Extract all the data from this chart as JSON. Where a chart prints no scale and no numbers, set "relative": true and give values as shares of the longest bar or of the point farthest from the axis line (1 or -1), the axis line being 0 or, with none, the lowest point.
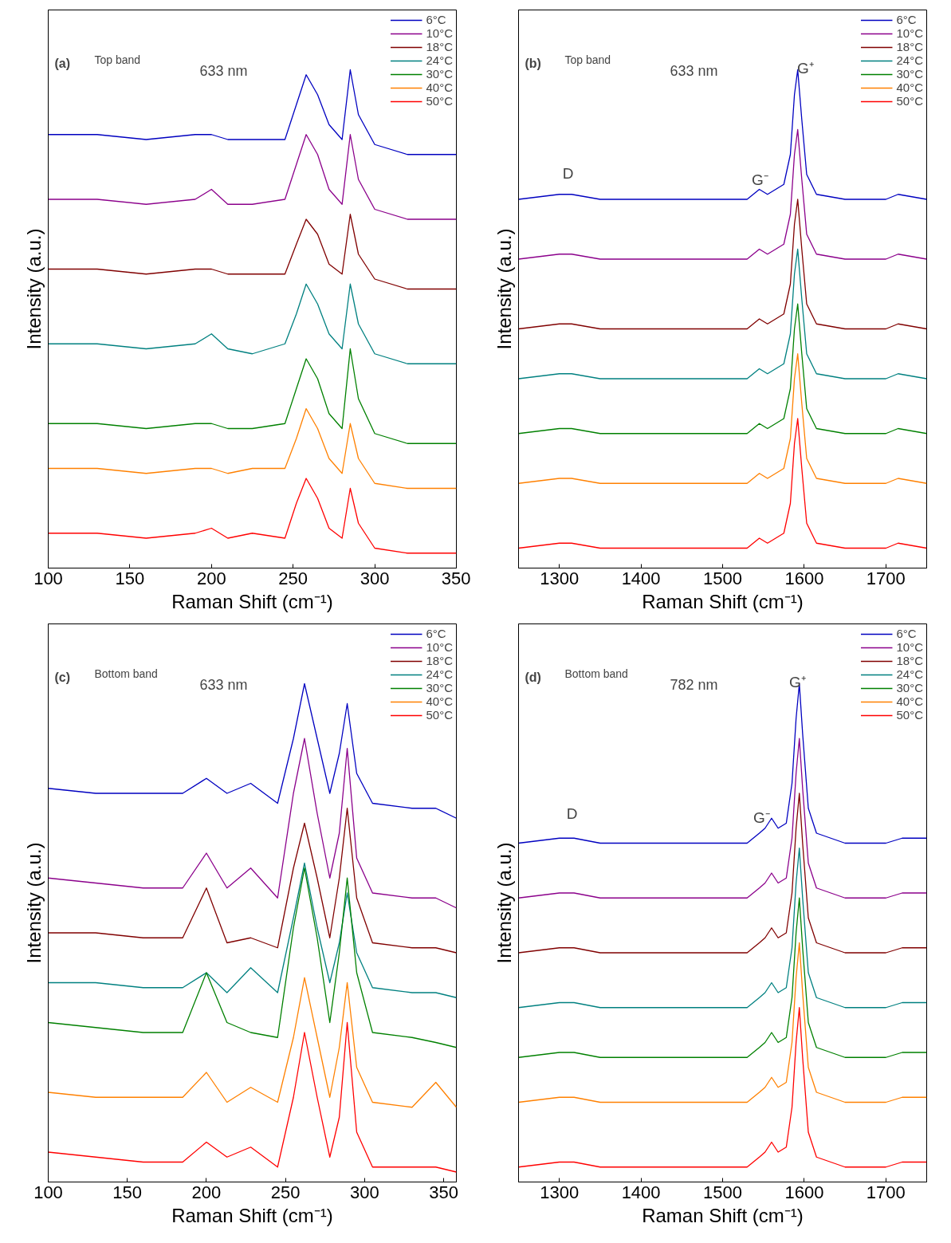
{
  "chart_data": [
    {
      "type": "line",
      "relative": true,
      "xlabel": "Raman Shift (cm⁻¹)",
      "ylabel": "Intensity (a.u.)",
      "legend": "top right",
      "annotations": [
        "(a)",
        "Top band",
        "633 nm"
      ],
      "xlim": [
        100,
        350
      ],
      "xticks": [
        100,
        150,
        200,
        250,
        300,
        350
      ],
      "x": [
        100,
        130,
        160,
        190,
        200,
        210,
        225,
        245,
        252,
        258,
        265,
        272,
        280,
        285,
        290,
        300,
        320,
        350
      ],
      "series": [
        {
          "name": "6°C",
          "color": "#0000c0",
          "values": [
            0.87,
            0.87,
            0.86,
            0.87,
            0.87,
            0.86,
            0.86,
            0.86,
            0.93,
            0.99,
            0.95,
            0.89,
            0.86,
            1.0,
            0.91,
            0.85,
            0.83,
            0.83
          ]
        },
        {
          "name": "10°C",
          "color": "#8b008b",
          "values": [
            0.74,
            0.74,
            0.73,
            0.74,
            0.76,
            0.73,
            0.73,
            0.74,
            0.81,
            0.87,
            0.83,
            0.76,
            0.73,
            0.87,
            0.78,
            0.72,
            0.7,
            0.7
          ]
        },
        {
          "name": "18°C",
          "color": "#800000",
          "values": [
            0.6,
            0.6,
            0.59,
            0.6,
            0.6,
            0.59,
            0.59,
            0.59,
            0.65,
            0.7,
            0.67,
            0.61,
            0.59,
            0.71,
            0.63,
            0.58,
            0.56,
            0.56
          ]
        },
        {
          "name": "24°C",
          "color": "#008080",
          "values": [
            0.45,
            0.45,
            0.44,
            0.45,
            0.47,
            0.44,
            0.43,
            0.45,
            0.51,
            0.57,
            0.53,
            0.47,
            0.44,
            0.57,
            0.49,
            0.43,
            0.41,
            0.41
          ]
        },
        {
          "name": "30°C",
          "color": "#008000",
          "values": [
            0.29,
            0.29,
            0.28,
            0.29,
            0.29,
            0.28,
            0.28,
            0.29,
            0.36,
            0.42,
            0.38,
            0.31,
            0.28,
            0.44,
            0.34,
            0.27,
            0.25,
            0.25
          ]
        },
        {
          "name": "40°C",
          "color": "#ff8000",
          "values": [
            0.2,
            0.2,
            0.19,
            0.2,
            0.2,
            0.19,
            0.2,
            0.2,
            0.26,
            0.32,
            0.28,
            0.22,
            0.19,
            0.29,
            0.22,
            0.17,
            0.16,
            0.16
          ]
        },
        {
          "name": "50°C",
          "color": "#ff0000",
          "values": [
            0.07,
            0.07,
            0.06,
            0.07,
            0.08,
            0.06,
            0.07,
            0.06,
            0.13,
            0.18,
            0.14,
            0.08,
            0.06,
            0.16,
            0.09,
            0.04,
            0.03,
            0.03
          ]
        }
      ]
    },
    {
      "type": "line",
      "relative": true,
      "xlabel": "Raman Shift (cm⁻¹)",
      "ylabel": "Intensity (a.u.)",
      "legend": "top right",
      "annotations": [
        "(b)",
        "Top band",
        "633 nm",
        "D",
        "G⁻",
        "G⁺"
      ],
      "xlim": [
        1250,
        1750
      ],
      "xticks": [
        1300,
        1400,
        1500,
        1600,
        1700
      ],
      "x": [
        1250,
        1300,
        1315,
        1350,
        1450,
        1530,
        1545,
        1555,
        1565,
        1575,
        1583,
        1588,
        1592,
        1597,
        1603,
        1615,
        1650,
        1700,
        1715,
        1750
      ],
      "series": [
        {
          "name": "6°C",
          "color": "#0000c0",
          "values": [
            0.74,
            0.75,
            0.75,
            0.74,
            0.74,
            0.74,
            0.76,
            0.75,
            0.76,
            0.77,
            0.83,
            0.95,
            1.0,
            0.9,
            0.79,
            0.75,
            0.74,
            0.74,
            0.75,
            0.74
          ]
        },
        {
          "name": "10°C",
          "color": "#8b008b",
          "values": [
            0.62,
            0.63,
            0.63,
            0.62,
            0.62,
            0.62,
            0.64,
            0.63,
            0.64,
            0.65,
            0.71,
            0.83,
            0.88,
            0.78,
            0.67,
            0.63,
            0.62,
            0.62,
            0.63,
            0.62
          ]
        },
        {
          "name": "18°C",
          "color": "#800000",
          "values": [
            0.48,
            0.49,
            0.49,
            0.48,
            0.48,
            0.48,
            0.5,
            0.49,
            0.5,
            0.51,
            0.57,
            0.69,
            0.74,
            0.64,
            0.53,
            0.49,
            0.48,
            0.48,
            0.49,
            0.48
          ]
        },
        {
          "name": "24°C",
          "color": "#008080",
          "values": [
            0.38,
            0.39,
            0.39,
            0.38,
            0.38,
            0.38,
            0.4,
            0.39,
            0.4,
            0.41,
            0.47,
            0.59,
            0.64,
            0.54,
            0.43,
            0.39,
            0.38,
            0.38,
            0.39,
            0.38
          ]
        },
        {
          "name": "30°C",
          "color": "#008000",
          "values": [
            0.27,
            0.28,
            0.28,
            0.27,
            0.27,
            0.27,
            0.29,
            0.28,
            0.29,
            0.3,
            0.36,
            0.48,
            0.53,
            0.43,
            0.32,
            0.28,
            0.27,
            0.27,
            0.28,
            0.27
          ]
        },
        {
          "name": "40°C",
          "color": "#ff8000",
          "values": [
            0.17,
            0.18,
            0.18,
            0.17,
            0.17,
            0.17,
            0.19,
            0.18,
            0.19,
            0.2,
            0.26,
            0.38,
            0.43,
            0.33,
            0.22,
            0.18,
            0.17,
            0.17,
            0.18,
            0.17
          ]
        },
        {
          "name": "50°C",
          "color": "#ff0000",
          "values": [
            0.04,
            0.05,
            0.05,
            0.04,
            0.04,
            0.04,
            0.06,
            0.05,
            0.06,
            0.07,
            0.13,
            0.25,
            0.3,
            0.2,
            0.09,
            0.05,
            0.04,
            0.04,
            0.05,
            0.04
          ]
        }
      ]
    },
    {
      "type": "line",
      "relative": true,
      "xlabel": "Raman Shift (cm⁻¹)",
      "ylabel": "Intensity (a.u.)",
      "legend": "top right",
      "annotations": [
        "(c)",
        "Bottom band",
        "633 nm"
      ],
      "xlim": [
        100,
        358
      ],
      "xticks": [
        100,
        150,
        200,
        250,
        300,
        350
      ],
      "x": [
        100,
        130,
        160,
        185,
        200,
        213,
        228,
        245,
        255,
        262,
        270,
        278,
        284,
        289,
        295,
        305,
        330,
        345,
        358
      ],
      "series": [
        {
          "name": "6°C",
          "color": "#0000c0",
          "values": [
            0.79,
            0.78,
            0.78,
            0.78,
            0.81,
            0.78,
            0.8,
            0.76,
            0.89,
            1.0,
            0.89,
            0.78,
            0.86,
            0.96,
            0.82,
            0.76,
            0.75,
            0.75,
            0.73
          ]
        },
        {
          "name": "10°C",
          "color": "#8b008b",
          "values": [
            0.61,
            0.6,
            0.59,
            0.59,
            0.66,
            0.59,
            0.63,
            0.57,
            0.78,
            0.89,
            0.74,
            0.61,
            0.7,
            0.87,
            0.65,
            0.58,
            0.57,
            0.57,
            0.55
          ]
        },
        {
          "name": "18°C",
          "color": "#800000",
          "values": [
            0.5,
            0.5,
            0.49,
            0.49,
            0.59,
            0.48,
            0.49,
            0.47,
            0.63,
            0.72,
            0.61,
            0.49,
            0.61,
            0.75,
            0.57,
            0.48,
            0.47,
            0.47,
            0.46
          ]
        },
        {
          "name": "24°C",
          "color": "#008080",
          "values": [
            0.4,
            0.4,
            0.39,
            0.39,
            0.42,
            0.38,
            0.43,
            0.38,
            0.53,
            0.64,
            0.51,
            0.4,
            0.48,
            0.58,
            0.46,
            0.39,
            0.38,
            0.38,
            0.37
          ]
        },
        {
          "name": "30°C",
          "color": "#008000",
          "values": [
            0.32,
            0.31,
            0.3,
            0.3,
            0.42,
            0.32,
            0.3,
            0.29,
            0.51,
            0.63,
            0.49,
            0.32,
            0.46,
            0.61,
            0.42,
            0.3,
            0.29,
            0.28,
            0.27
          ]
        },
        {
          "name": "40°C",
          "color": "#ff8000",
          "values": [
            0.18,
            0.17,
            0.17,
            0.17,
            0.22,
            0.16,
            0.19,
            0.16,
            0.29,
            0.41,
            0.29,
            0.17,
            0.27,
            0.4,
            0.23,
            0.16,
            0.15,
            0.2,
            0.15
          ]
        },
        {
          "name": "50°C",
          "color": "#ff0000",
          "values": [
            0.06,
            0.05,
            0.04,
            0.04,
            0.08,
            0.05,
            0.07,
            0.03,
            0.17,
            0.3,
            0.17,
            0.05,
            0.13,
            0.32,
            0.1,
            0.03,
            0.03,
            0.03,
            0.02
          ]
        }
      ]
    },
    {
      "type": "line",
      "relative": true,
      "xlabel": "Raman Shift (cm⁻¹)",
      "ylabel": "Intensity (a.u.)",
      "legend": "top right",
      "annotations": [
        "(d)",
        "Bottom band",
        "782 nm",
        "D",
        "G⁻",
        "G⁺"
      ],
      "xlim": [
        1250,
        1750
      ],
      "xticks": [
        1300,
        1400,
        1500,
        1600,
        1700
      ],
      "x": [
        1250,
        1300,
        1318,
        1350,
        1450,
        1530,
        1545,
        1552,
        1560,
        1568,
        1578,
        1585,
        1590,
        1594,
        1598,
        1605,
        1615,
        1650,
        1700,
        1720,
        1750
      ],
      "series": [
        {
          "name": "6°C",
          "color": "#0000c0",
          "values": [
            0.68,
            0.69,
            0.69,
            0.68,
            0.68,
            0.68,
            0.7,
            0.71,
            0.73,
            0.71,
            0.72,
            0.8,
            0.93,
            1.0,
            0.9,
            0.75,
            0.7,
            0.68,
            0.68,
            0.69,
            0.69
          ]
        },
        {
          "name": "10°C",
          "color": "#8b008b",
          "values": [
            0.57,
            0.58,
            0.58,
            0.57,
            0.57,
            0.57,
            0.59,
            0.6,
            0.62,
            0.6,
            0.61,
            0.69,
            0.82,
            0.89,
            0.79,
            0.64,
            0.59,
            0.57,
            0.57,
            0.58,
            0.58
          ]
        },
        {
          "name": "18°C",
          "color": "#800000",
          "values": [
            0.46,
            0.47,
            0.47,
            0.46,
            0.46,
            0.46,
            0.48,
            0.49,
            0.51,
            0.49,
            0.5,
            0.58,
            0.71,
            0.78,
            0.68,
            0.53,
            0.48,
            0.46,
            0.46,
            0.47,
            0.47
          ]
        },
        {
          "name": "24°C",
          "color": "#008080",
          "values": [
            0.35,
            0.36,
            0.36,
            0.35,
            0.35,
            0.35,
            0.37,
            0.38,
            0.4,
            0.38,
            0.39,
            0.47,
            0.6,
            0.67,
            0.57,
            0.42,
            0.37,
            0.35,
            0.35,
            0.36,
            0.36
          ]
        },
        {
          "name": "30°C",
          "color": "#008000",
          "values": [
            0.25,
            0.26,
            0.26,
            0.25,
            0.25,
            0.25,
            0.27,
            0.28,
            0.3,
            0.28,
            0.29,
            0.37,
            0.5,
            0.57,
            0.47,
            0.32,
            0.27,
            0.25,
            0.25,
            0.26,
            0.26
          ]
        },
        {
          "name": "40°C",
          "color": "#ff8000",
          "values": [
            0.16,
            0.17,
            0.17,
            0.16,
            0.16,
            0.16,
            0.18,
            0.19,
            0.21,
            0.19,
            0.2,
            0.28,
            0.41,
            0.48,
            0.38,
            0.23,
            0.18,
            0.16,
            0.16,
            0.17,
            0.17
          ]
        },
        {
          "name": "50°C",
          "color": "#ff0000",
          "values": [
            0.03,
            0.04,
            0.04,
            0.03,
            0.03,
            0.03,
            0.05,
            0.06,
            0.08,
            0.06,
            0.07,
            0.15,
            0.28,
            0.35,
            0.25,
            0.1,
            0.05,
            0.03,
            0.03,
            0.04,
            0.04
          ]
        }
      ]
    }
  ]
}
